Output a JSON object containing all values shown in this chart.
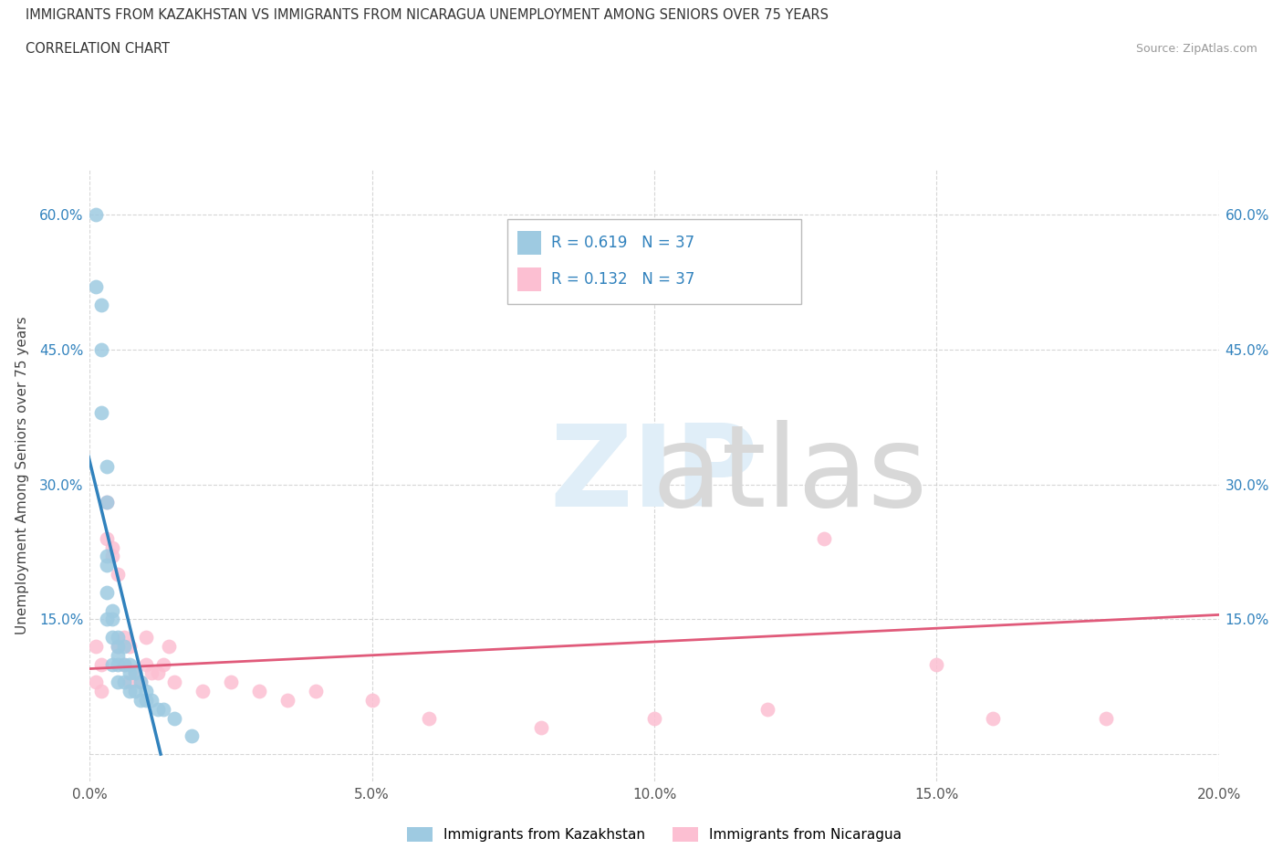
{
  "title_line1": "IMMIGRANTS FROM KAZAKHSTAN VS IMMIGRANTS FROM NICARAGUA UNEMPLOYMENT AMONG SENIORS OVER 75 YEARS",
  "title_line2": "CORRELATION CHART",
  "source_text": "Source: ZipAtlas.com",
  "ylabel": "Unemployment Among Seniors over 75 years",
  "xlim": [
    0.0,
    0.2
  ],
  "ylim": [
    -0.03,
    0.65
  ],
  "xticks": [
    0.0,
    0.05,
    0.1,
    0.15,
    0.2
  ],
  "xticklabels": [
    "0.0%",
    "5.0%",
    "10.0%",
    "15.0%",
    "20.0%"
  ],
  "yticks": [
    0.0,
    0.15,
    0.3,
    0.45,
    0.6
  ],
  "yticklabels": [
    "",
    "15.0%",
    "30.0%",
    "45.0%",
    "60.0%"
  ],
  "kaz_color": "#9ecae1",
  "nic_color": "#fcbfd2",
  "trend_blue": "#3182bd",
  "trend_pink": "#e05a7a",
  "R_kaz": 0.619,
  "N_kaz": 37,
  "R_nic": 0.132,
  "N_nic": 37,
  "legend_label_kaz": "Immigrants from Kazakhstan",
  "legend_label_nic": "Immigrants from Nicaragua",
  "kaz_x": [
    0.001,
    0.001,
    0.002,
    0.002,
    0.002,
    0.003,
    0.003,
    0.003,
    0.003,
    0.003,
    0.003,
    0.004,
    0.004,
    0.004,
    0.004,
    0.005,
    0.005,
    0.005,
    0.005,
    0.005,
    0.006,
    0.006,
    0.006,
    0.007,
    0.007,
    0.007,
    0.008,
    0.008,
    0.009,
    0.009,
    0.01,
    0.01,
    0.011,
    0.012,
    0.013,
    0.015,
    0.018
  ],
  "kaz_y": [
    0.6,
    0.52,
    0.5,
    0.45,
    0.38,
    0.32,
    0.28,
    0.22,
    0.21,
    0.18,
    0.15,
    0.16,
    0.15,
    0.13,
    0.1,
    0.13,
    0.12,
    0.11,
    0.1,
    0.08,
    0.12,
    0.1,
    0.08,
    0.1,
    0.09,
    0.07,
    0.09,
    0.07,
    0.08,
    0.06,
    0.07,
    0.06,
    0.06,
    0.05,
    0.05,
    0.04,
    0.02
  ],
  "nic_x": [
    0.001,
    0.001,
    0.002,
    0.002,
    0.003,
    0.003,
    0.004,
    0.004,
    0.005,
    0.005,
    0.006,
    0.006,
    0.007,
    0.007,
    0.008,
    0.009,
    0.01,
    0.01,
    0.011,
    0.012,
    0.013,
    0.014,
    0.015,
    0.02,
    0.025,
    0.03,
    0.035,
    0.04,
    0.05,
    0.06,
    0.08,
    0.1,
    0.12,
    0.13,
    0.15,
    0.16,
    0.18
  ],
  "nic_y": [
    0.12,
    0.08,
    0.1,
    0.07,
    0.28,
    0.24,
    0.23,
    0.22,
    0.2,
    0.12,
    0.13,
    0.1,
    0.12,
    0.08,
    0.09,
    0.08,
    0.13,
    0.1,
    0.09,
    0.09,
    0.1,
    0.12,
    0.08,
    0.07,
    0.08,
    0.07,
    0.06,
    0.07,
    0.06,
    0.04,
    0.03,
    0.04,
    0.05,
    0.24,
    0.1,
    0.04,
    0.04
  ],
  "nic_trend_x": [
    0.0,
    0.2
  ],
  "nic_trend_y": [
    0.095,
    0.155
  ]
}
